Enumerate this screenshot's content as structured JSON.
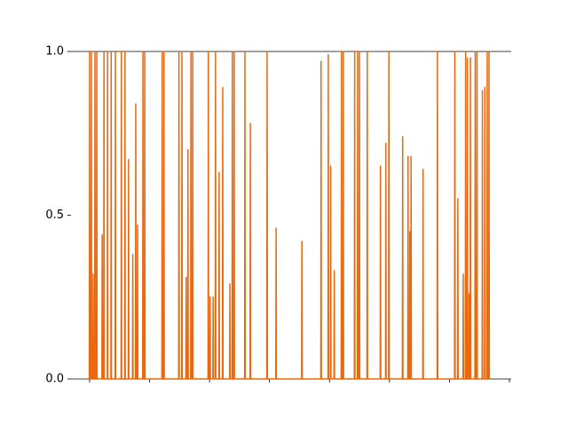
{
  "chart_data": {
    "type": "line",
    "x": [
      -0.05,
      0,
      0.05,
      0.25,
      0.3,
      0.35,
      0.55,
      0.6,
      0.65,
      0.85,
      0.9,
      0.95,
      1.15,
      1.2,
      1.25,
      2.05,
      2.1,
      2.15,
      2.35,
      2.4,
      2.45,
      2.95,
      3,
      3.05,
      3.55,
      3.6,
      3.65,
      4.25,
      4.3,
      4.35,
      5.25,
      5.3,
      5.35,
      5.85,
      5.9,
      5.95,
      6.45,
      6.5,
      6.55,
      7.15,
      7.2,
      7.25,
      7.65,
      7.7,
      7.75,
      7.95,
      8,
      8.05,
      8.85,
      8.9,
      8.95,
      9.15,
      9.2,
      9.25,
      12.05,
      12.1,
      12.15,
      12.35,
      12.4,
      12.45,
      14.85,
      14.9,
      14.95,
      15.35,
      15.4,
      15.45,
      16.05,
      16.1,
      16.15,
      16.35,
      16.4,
      16.45,
      16.85,
      16.9,
      16.95,
      17.15,
      17.2,
      17.25,
      19.75,
      19.8,
      19.85,
      20.05,
      20.1,
      20.15,
      20.55,
      20.6,
      20.65,
      20.95,
      21,
      21.05,
      21.55,
      21.6,
      21.65,
      22.15,
      22.2,
      22.25,
      23.35,
      23.4,
      23.45,
      23.75,
      23.8,
      23.85,
      24.05,
      24.1,
      24.15,
      25.85,
      25.9,
      25.95,
      26.75,
      26.8,
      26.85,
      29.55,
      29.6,
      29.65,
      31.05,
      31.1,
      31.15,
      35.35,
      35.4,
      35.45,
      38.55,
      38.6,
      38.65,
      39.75,
      39.8,
      39.85,
      40.15,
      40.2,
      40.25,
      40.75,
      40.8,
      40.85,
      41.95,
      42,
      42.05,
      42.25,
      42.3,
      42.35,
      44.15,
      44.2,
      44.25,
      44.65,
      44.7,
      44.75,
      44.95,
      45,
      45.05,
      46.25,
      46.3,
      46.35,
      48.45,
      48.5,
      48.55,
      49.35,
      49.4,
      49.45,
      49.85,
      49.9,
      49.95,
      52.15,
      52.2,
      52.25,
      53.05,
      53.1,
      53.15,
      53.35,
      53.4,
      53.45,
      53.55,
      53.6,
      53.65,
      55.55,
      55.6,
      55.65,
      57.95,
      58,
      58.05,
      60.85,
      60.9,
      60.95,
      61.35,
      61.4,
      61.45,
      62.25,
      62.3,
      62.35,
      62.65,
      62.7,
      62.75,
      62.95,
      63,
      63.05,
      63.25,
      63.3,
      63.35,
      63.45,
      63.5,
      63.55,
      64.25,
      64.3,
      64.35,
      64.55,
      64.6,
      64.65,
      65.45,
      65.5,
      65.55,
      65.85,
      65.9,
      65.95,
      66.25,
      66.3,
      66.35,
      66.55,
      66.6,
      66.65
    ],
    "series": [
      {
        "color": "#e8690f",
        "values": [
          0,
          1,
          0,
          0,
          1,
          0,
          0,
          0.32,
          0,
          0,
          1,
          0,
          0,
          1,
          0,
          0,
          0.44,
          0,
          0,
          1,
          0,
          0,
          1,
          0,
          0,
          1,
          0,
          0,
          1,
          0,
          0,
          1,
          0,
          0,
          1,
          0,
          0,
          0.67,
          0,
          0,
          0.38,
          0,
          0,
          0.84,
          0,
          0,
          0.47,
          0,
          0,
          1,
          0,
          0,
          1,
          0,
          0,
          1,
          0,
          0,
          1,
          0,
          0,
          1,
          0,
          0,
          1,
          0,
          0,
          0.31,
          0,
          0,
          0.7,
          0,
          0,
          1,
          0,
          0,
          1,
          0,
          0,
          1,
          0,
          0,
          0.25,
          0,
          0,
          0.25,
          0,
          0,
          1,
          0,
          0,
          0.63,
          0,
          0,
          0.89,
          0,
          0,
          0.29,
          0,
          0,
          1,
          0,
          0,
          1,
          0,
          0,
          1,
          0,
          0,
          0.78,
          0,
          0,
          1,
          0,
          0,
          0.46,
          0,
          0,
          0.42,
          0,
          0,
          0.97,
          0,
          0,
          0.99,
          0,
          0,
          0.65,
          0,
          0,
          0.33,
          0,
          0,
          1,
          0,
          0,
          1,
          0,
          0,
          1,
          0,
          0,
          1,
          0,
          0,
          1,
          0,
          0,
          1,
          0,
          0,
          0.65,
          0,
          0,
          0.72,
          0,
          0,
          1,
          0,
          0,
          0.74,
          0,
          0,
          0.68,
          0,
          0,
          0.45,
          0,
          0,
          0.68,
          0,
          0,
          0.64,
          0,
          0,
          1,
          0,
          0,
          1,
          0,
          0,
          0.55,
          0,
          0,
          0.32,
          0,
          0,
          1,
          0,
          0,
          0.98,
          0,
          0,
          0.26,
          0,
          0,
          0.98,
          0,
          0,
          1,
          0,
          0,
          1,
          0,
          0,
          0.88,
          0,
          0,
          0.89,
          0,
          0,
          1,
          0,
          0,
          1,
          0
        ]
      }
    ],
    "xlim": [
      -3.1,
      70.3
    ],
    "xticks": [
      0,
      10,
      20,
      30,
      40,
      50,
      60,
      70
    ],
    "ylim": [
      0,
      1
    ],
    "yticks": [
      {
        "value": 0,
        "label": "0.0"
      },
      0.5,
      {
        "value": 1,
        "label": "1.0"
      }
    ]
  }
}
